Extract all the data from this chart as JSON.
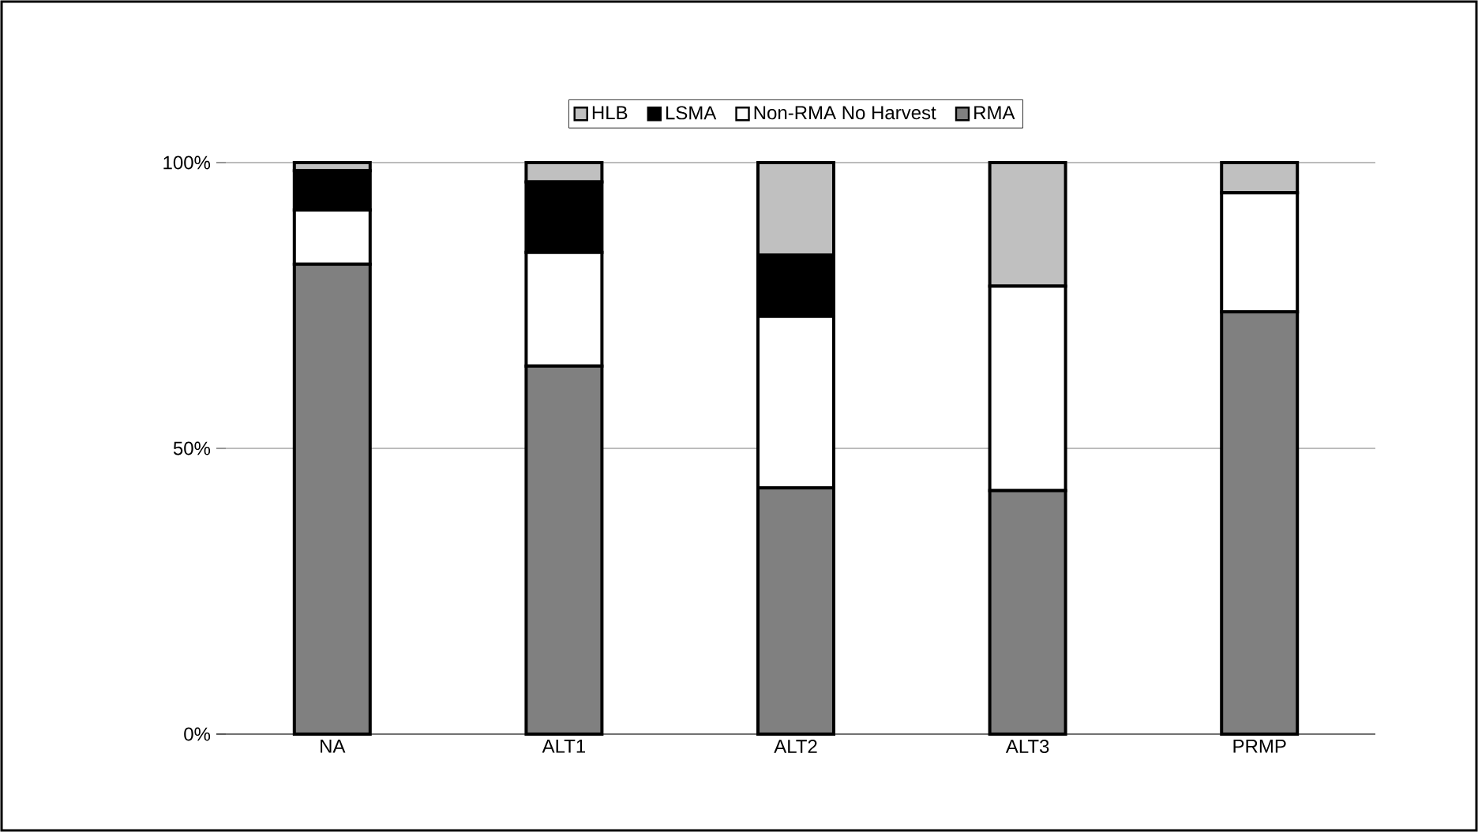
{
  "chart_data": {
    "type": "bar",
    "stacked": true,
    "categories": [
      "NA",
      "ALT1",
      "ALT2",
      "ALT3",
      "PRMP"
    ],
    "series": [
      {
        "name": "RMA",
        "color": "#808080",
        "values": [
          82.2,
          64.4,
          43.1,
          42.6,
          73.9
        ]
      },
      {
        "name": "Non-RMA No Harvest",
        "color": "#ffffff",
        "values": [
          9.5,
          19.9,
          30.0,
          35.8,
          20.8
        ]
      },
      {
        "name": "LSMA",
        "color": "#000000",
        "values": [
          6.9,
          12.3,
          10.7,
          0,
          0
        ]
      },
      {
        "name": "HLB",
        "color": "#c0c0c0",
        "values": [
          1.4,
          3.4,
          16.2,
          21.6,
          5.3
        ]
      }
    ],
    "ylim": [
      0,
      100
    ],
    "yticks": [
      {
        "value": 0,
        "label": "0%"
      },
      {
        "value": 50,
        "label": "50%"
      },
      {
        "value": 100,
        "label": "100%"
      }
    ],
    "grid": "y",
    "legend": "top"
  }
}
